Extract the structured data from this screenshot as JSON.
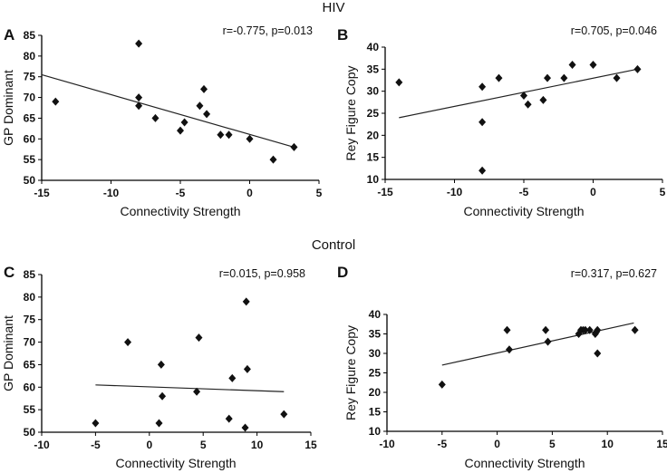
{
  "groups": {
    "hiv": "HIV",
    "control": "Control"
  },
  "chart_data": [
    {
      "type": "scatter",
      "panel": "A",
      "group": "HIV",
      "stat": "r=-0.775, p=0.013",
      "xlabel": "Connectivity Strength",
      "ylabel": "GP Dominant",
      "xlim": [
        -15,
        5
      ],
      "ylim": [
        50,
        85
      ],
      "xticks": [
        -15,
        -10,
        -5,
        0,
        5
      ],
      "yticks": [
        50,
        55,
        60,
        65,
        70,
        75,
        80,
        85
      ],
      "points": [
        [
          -14,
          69
        ],
        [
          -8,
          83
        ],
        [
          -8,
          70
        ],
        [
          -8,
          68
        ],
        [
          -6.8,
          65
        ],
        [
          -5,
          62
        ],
        [
          -4.7,
          64
        ],
        [
          -3.6,
          68
        ],
        [
          -3.3,
          72
        ],
        [
          -3.1,
          66
        ],
        [
          -2.1,
          61
        ],
        [
          -1.5,
          61
        ],
        [
          0,
          60
        ],
        [
          1.7,
          55
        ],
        [
          3.2,
          58
        ]
      ],
      "trendline": [
        [
          -15,
          75.5
        ],
        [
          3.2,
          58
        ]
      ]
    },
    {
      "type": "scatter",
      "panel": "B",
      "group": "HIV",
      "stat": "r=0.705, p=0.046",
      "xlabel": "Connectivity Strength",
      "ylabel": "Rey Figure Copy",
      "xlim": [
        -15,
        5
      ],
      "ylim": [
        10,
        40
      ],
      "xticks": [
        -15,
        -10,
        -5,
        0,
        5
      ],
      "yticks": [
        10,
        15,
        20,
        25,
        30,
        35,
        40
      ],
      "points": [
        [
          -14,
          32
        ],
        [
          -8,
          31
        ],
        [
          -8,
          23
        ],
        [
          -8,
          12
        ],
        [
          -6.8,
          33
        ],
        [
          -5,
          29
        ],
        [
          -4.7,
          27
        ],
        [
          -3.6,
          28
        ],
        [
          -3.3,
          33
        ],
        [
          -2.1,
          33
        ],
        [
          -1.5,
          36
        ],
        [
          0,
          36
        ],
        [
          1.7,
          33
        ],
        [
          3.2,
          35
        ]
      ],
      "trendline": [
        [
          -14,
          24
        ],
        [
          3.2,
          35
        ]
      ]
    },
    {
      "type": "scatter",
      "panel": "C",
      "group": "Control",
      "stat": "r=0.015, p=0.958",
      "xlabel": "Connectivity Strength",
      "ylabel": "GP Dominant",
      "xlim": [
        -10,
        15
      ],
      "ylim": [
        50,
        85
      ],
      "xticks": [
        -10,
        -5,
        0,
        5,
        10,
        15
      ],
      "yticks": [
        50,
        55,
        60,
        65,
        70,
        75,
        80,
        85
      ],
      "points": [
        [
          -5,
          52
        ],
        [
          -2,
          70
        ],
        [
          1.1,
          65
        ],
        [
          1.2,
          58
        ],
        [
          0.9,
          52
        ],
        [
          4.4,
          59
        ],
        [
          4.6,
          71
        ],
        [
          7.4,
          53
        ],
        [
          7.7,
          62
        ],
        [
          9,
          79
        ],
        [
          9.1,
          64
        ],
        [
          8.9,
          51
        ],
        [
          12.5,
          54
        ]
      ],
      "trendline": [
        [
          -5,
          60.5
        ],
        [
          12.5,
          59
        ]
      ]
    },
    {
      "type": "scatter",
      "panel": "D",
      "group": "Control",
      "stat": "r=0.317, p=0.627",
      "xlabel": "Connectivity Strength",
      "ylabel": "Rey Figure Copy",
      "xlim": [
        -10,
        15
      ],
      "ylim": [
        10,
        40
      ],
      "xticks": [
        -10,
        -5,
        0,
        5,
        10,
        15
      ],
      "yticks": [
        10,
        15,
        20,
        25,
        30,
        35,
        40
      ],
      "points": [
        [
          -5,
          22
        ],
        [
          0.9,
          36
        ],
        [
          1.1,
          31
        ],
        [
          4.4,
          36
        ],
        [
          4.6,
          33
        ],
        [
          7.4,
          35
        ],
        [
          7.6,
          36
        ],
        [
          7.8,
          36
        ],
        [
          8,
          36
        ],
        [
          8.4,
          36
        ],
        [
          8.9,
          35
        ],
        [
          9,
          35.5
        ],
        [
          9.1,
          36
        ],
        [
          9.1,
          30
        ],
        [
          12.5,
          36
        ]
      ],
      "trendline": [
        [
          -5,
          27
        ],
        [
          12.4,
          37.8
        ]
      ]
    }
  ]
}
